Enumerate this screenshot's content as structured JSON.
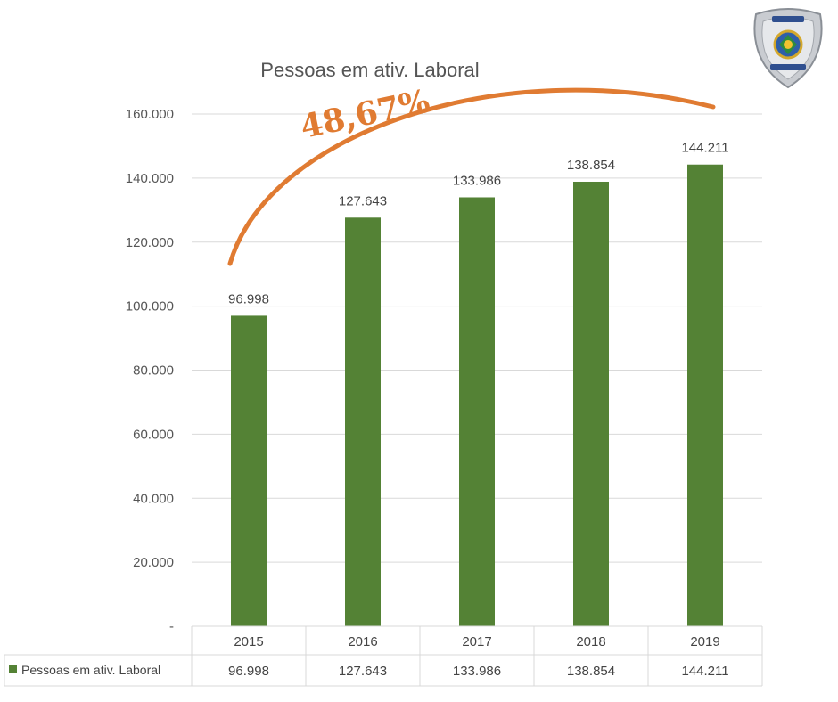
{
  "chart_data": {
    "type": "bar",
    "title": "Pessoas em ativ. Laboral",
    "categories": [
      "2015",
      "2016",
      "2017",
      "2018",
      "2019"
    ],
    "series": [
      {
        "name": "Pessoas em ativ. Laboral",
        "values": [
          96998,
          127643,
          133986,
          138854,
          144211
        ]
      }
    ],
    "data_labels": [
      "96.998",
      "127.643",
      "133.986",
      "138.854",
      "144.211"
    ],
    "y_ticks": [
      "-",
      "20.000",
      "40.000",
      "60.000",
      "80.000",
      "100.000",
      "120.000",
      "140.000",
      "160.000"
    ],
    "ylim": [
      0,
      160000
    ],
    "grid": true,
    "annotation": "48,67%",
    "data_table": true,
    "legend_position": "bottom-left in data table"
  },
  "colors": {
    "bar": "#548235",
    "annotation": "#e07b32",
    "grid": "#d9d9d9"
  },
  "logo": {
    "name": "badge-logo"
  }
}
